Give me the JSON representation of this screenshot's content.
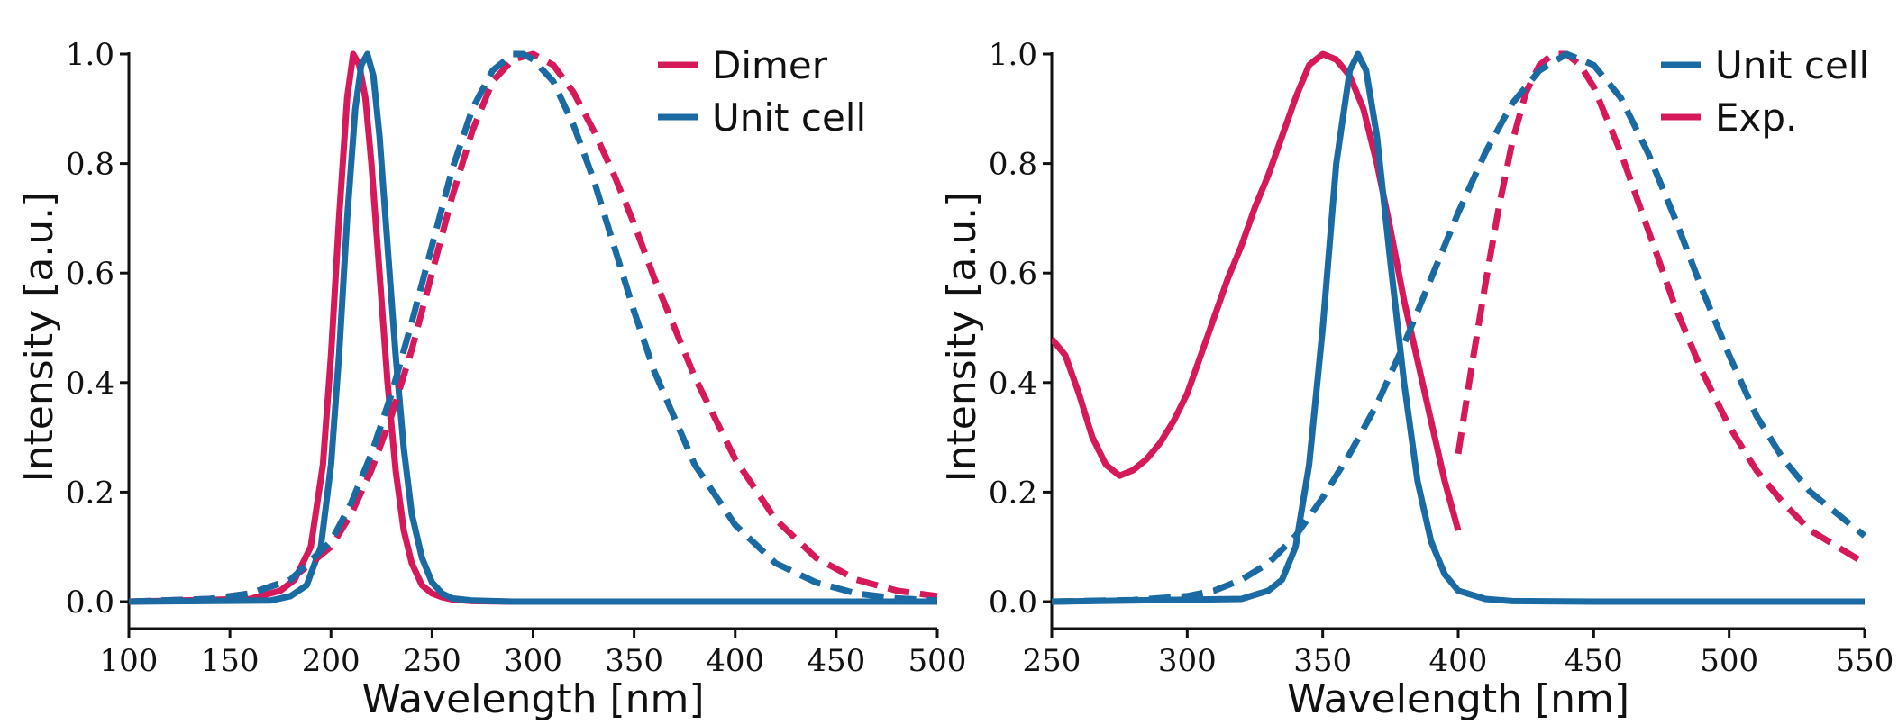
{
  "chart_data": [
    {
      "type": "line",
      "xlabel": "Wavelength [nm]",
      "ylabel": "Intensity [a.u.]",
      "xlim": [
        100,
        500
      ],
      "ylim": [
        0,
        1.0
      ],
      "xticks": [
        100,
        150,
        200,
        250,
        300,
        350,
        400,
        450,
        500
      ],
      "yticks": [
        0.0,
        0.2,
        0.4,
        0.6,
        0.8,
        1.0
      ],
      "legend": [
        {
          "name": "Dimer",
          "color": "#d6195a"
        },
        {
          "name": "Unit cell",
          "color": "#1a6aa3"
        }
      ],
      "series": [
        {
          "name": "Dimer",
          "style": "solid",
          "color": "#d6195a",
          "x": [
            100,
            160,
            175,
            182,
            190,
            196,
            200,
            204,
            208,
            211,
            214,
            217,
            220,
            224,
            228,
            232,
            236,
            240,
            245,
            250,
            255,
            260,
            270,
            290,
            350,
            500
          ],
          "y": [
            0.0,
            0.005,
            0.02,
            0.04,
            0.1,
            0.25,
            0.45,
            0.7,
            0.92,
            1.0,
            0.98,
            0.92,
            0.8,
            0.6,
            0.4,
            0.24,
            0.13,
            0.07,
            0.03,
            0.015,
            0.008,
            0.004,
            0.001,
            0.0,
            0.0,
            0.0
          ]
        },
        {
          "name": "Unit cell",
          "style": "solid",
          "color": "#1a6aa3",
          "x": [
            100,
            170,
            180,
            188,
            195,
            200,
            204,
            208,
            212,
            215,
            218,
            221,
            224,
            228,
            232,
            236,
            240,
            245,
            250,
            255,
            260,
            270,
            290,
            350,
            500
          ],
          "y": [
            0.0,
            0.002,
            0.01,
            0.03,
            0.1,
            0.25,
            0.45,
            0.7,
            0.9,
            0.98,
            1.0,
            0.96,
            0.85,
            0.65,
            0.45,
            0.28,
            0.16,
            0.08,
            0.035,
            0.015,
            0.006,
            0.002,
            0.0,
            0.0,
            0.0
          ]
        },
        {
          "name": "Dimer",
          "style": "dashed",
          "color": "#d6195a",
          "x": [
            100,
            140,
            160,
            180,
            200,
            210,
            220,
            230,
            240,
            250,
            260,
            270,
            280,
            290,
            300,
            310,
            320,
            330,
            340,
            350,
            360,
            380,
            400,
            420,
            440,
            460,
            480,
            500
          ],
          "y": [
            0.0,
            0.005,
            0.015,
            0.04,
            0.1,
            0.16,
            0.24,
            0.34,
            0.46,
            0.6,
            0.74,
            0.86,
            0.95,
            0.99,
            1.0,
            0.98,
            0.93,
            0.86,
            0.78,
            0.69,
            0.59,
            0.41,
            0.26,
            0.15,
            0.08,
            0.04,
            0.02,
            0.01
          ]
        },
        {
          "name": "Unit cell",
          "style": "dashed",
          "color": "#1a6aa3",
          "x": [
            100,
            140,
            160,
            180,
            200,
            210,
            220,
            230,
            240,
            250,
            260,
            270,
            280,
            290,
            295,
            300,
            310,
            320,
            330,
            340,
            350,
            360,
            380,
            400,
            420,
            440,
            460,
            480,
            500
          ],
          "y": [
            0.0,
            0.005,
            0.015,
            0.04,
            0.11,
            0.18,
            0.27,
            0.38,
            0.51,
            0.65,
            0.79,
            0.9,
            0.97,
            1.0,
            1.0,
            0.99,
            0.95,
            0.87,
            0.77,
            0.65,
            0.53,
            0.42,
            0.25,
            0.14,
            0.07,
            0.035,
            0.015,
            0.006,
            0.002
          ]
        }
      ]
    },
    {
      "type": "line",
      "xlabel": "Wavelength [nm]",
      "ylabel": "Intensity [a.u.]",
      "xlim": [
        250,
        550
      ],
      "ylim": [
        0,
        1.0
      ],
      "xticks": [
        250,
        300,
        350,
        400,
        450,
        500,
        550
      ],
      "yticks": [
        0.0,
        0.2,
        0.4,
        0.6,
        0.8,
        1.0
      ],
      "legend": [
        {
          "name": "Unit cell",
          "color": "#1a6aa3"
        },
        {
          "name": "Exp.",
          "color": "#d6195a"
        }
      ],
      "series": [
        {
          "name": "Exp.",
          "style": "solid",
          "color": "#d6195a",
          "x": [
            250,
            255,
            260,
            265,
            270,
            275,
            280,
            285,
            290,
            295,
            300,
            305,
            310,
            315,
            320,
            325,
            330,
            335,
            340,
            345,
            350,
            355,
            360,
            365,
            370,
            375,
            380,
            385,
            390,
            395,
            400
          ],
          "y": [
            0.48,
            0.45,
            0.38,
            0.3,
            0.25,
            0.23,
            0.24,
            0.26,
            0.29,
            0.33,
            0.38,
            0.45,
            0.52,
            0.59,
            0.65,
            0.72,
            0.78,
            0.85,
            0.92,
            0.98,
            1.0,
            0.99,
            0.96,
            0.9,
            0.8,
            0.68,
            0.55,
            0.44,
            0.33,
            0.22,
            0.13
          ]
        },
        {
          "name": "Unit cell",
          "style": "solid",
          "color": "#1a6aa3",
          "x": [
            250,
            320,
            330,
            335,
            340,
            345,
            350,
            355,
            360,
            363,
            366,
            370,
            375,
            380,
            385,
            390,
            395,
            400,
            410,
            420,
            450,
            550
          ],
          "y": [
            0.0,
            0.005,
            0.02,
            0.04,
            0.1,
            0.25,
            0.5,
            0.8,
            0.97,
            1.0,
            0.97,
            0.85,
            0.62,
            0.4,
            0.22,
            0.11,
            0.05,
            0.02,
            0.005,
            0.001,
            0.0,
            0.0
          ]
        },
        {
          "name": "Exp.",
          "style": "dashed",
          "color": "#d6195a",
          "x": [
            400,
            405,
            410,
            415,
            420,
            425,
            430,
            435,
            440,
            445,
            450,
            460,
            470,
            480,
            490,
            500,
            510,
            520,
            530,
            540,
            550
          ],
          "y": [
            0.27,
            0.43,
            0.58,
            0.72,
            0.84,
            0.93,
            0.98,
            1.0,
            1.0,
            0.98,
            0.94,
            0.82,
            0.68,
            0.54,
            0.42,
            0.32,
            0.24,
            0.18,
            0.13,
            0.1,
            0.07
          ]
        },
        {
          "name": "Unit cell",
          "style": "dashed",
          "color": "#1a6aa3",
          "x": [
            250,
            280,
            300,
            310,
            320,
            330,
            340,
            350,
            360,
            370,
            380,
            390,
            400,
            410,
            420,
            430,
            440,
            450,
            460,
            470,
            480,
            490,
            500,
            510,
            520,
            530,
            540,
            550
          ],
          "y": [
            0.0,
            0.003,
            0.01,
            0.02,
            0.04,
            0.07,
            0.12,
            0.19,
            0.27,
            0.36,
            0.47,
            0.59,
            0.71,
            0.82,
            0.91,
            0.97,
            1.0,
            0.98,
            0.92,
            0.82,
            0.7,
            0.57,
            0.45,
            0.34,
            0.26,
            0.2,
            0.16,
            0.12
          ]
        }
      ]
    }
  ]
}
